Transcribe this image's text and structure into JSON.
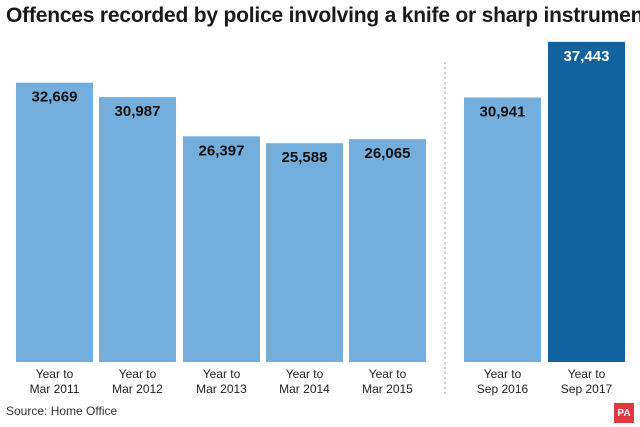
{
  "title": "Offences recorded by police involving a knife or sharp instrument",
  "source": "Source: Home Office",
  "logo_text": "PA",
  "colors": {
    "bar": "#74aedc",
    "highlight_bar": "#10639e",
    "label_dark": "#111111",
    "label_light": "#ffffff",
    "divider": "#9a9a9a"
  },
  "chart_data": {
    "type": "bar",
    "title": "Offences recorded by police involving a knife or sharp instrument",
    "categories": [
      [
        "Year to",
        "Mar 2011"
      ],
      [
        "Year to",
        "Mar 2012"
      ],
      [
        "Year to",
        "Mar 2013"
      ],
      [
        "Year to",
        "Mar 2014"
      ],
      [
        "Year to",
        "Mar 2015"
      ],
      [
        "Year to",
        "Sep 2016"
      ],
      [
        "Year to",
        "Sep 2017"
      ]
    ],
    "values": [
      32669,
      30987,
      26397,
      25588,
      26065,
      30941,
      37443
    ],
    "value_labels": [
      "32,669",
      "30,987",
      "26,397",
      "25,588",
      "26,065",
      "30,941",
      "37,443"
    ],
    "highlight_index": 6,
    "group_break_after_index": 4,
    "ylim": [
      0,
      40000
    ],
    "grid": false,
    "xlabel": "",
    "ylabel": ""
  }
}
